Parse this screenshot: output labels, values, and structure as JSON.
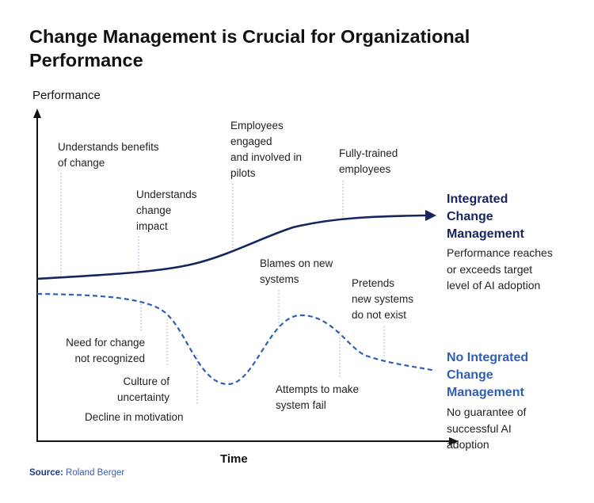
{
  "title": "Change Management is Crucial for Organizational Performance",
  "axes": {
    "y_label": "Performance",
    "x_label": "Time"
  },
  "colors": {
    "integrated": "#17255f",
    "no_integrated": "#2f5fb5",
    "axis": "#111111",
    "guide": "#9aa6c6"
  },
  "integrated": {
    "title_lines": [
      "Integrated",
      "Change",
      "Management"
    ],
    "desc_lines": [
      "Performance reaches",
      "or exceeds target",
      "level of AI adoption"
    ],
    "milestones": [
      [
        "Understands benefits",
        "of change"
      ],
      [
        "Understands",
        "change",
        "impact"
      ],
      [
        "Employees",
        "engaged",
        "and involved in",
        "pilots"
      ],
      [
        "Fully-trained",
        "employees"
      ]
    ]
  },
  "no_integrated": {
    "title_lines": [
      "No Integrated",
      "Change",
      "Management"
    ],
    "desc_lines": [
      "No guarantee of",
      "successful AI",
      "adoption"
    ],
    "milestones": [
      [
        "Need for change",
        "not recognized"
      ],
      [
        "Culture of",
        "uncertainty"
      ],
      [
        "Decline in motivation"
      ],
      [
        "Blames on new",
        "systems"
      ],
      [
        "Attempts to make",
        "system fail"
      ],
      [
        "Pretends",
        "new systems",
        "do not exist"
      ]
    ]
  },
  "source": {
    "label": "Source:",
    "value": "Roland Berger"
  }
}
